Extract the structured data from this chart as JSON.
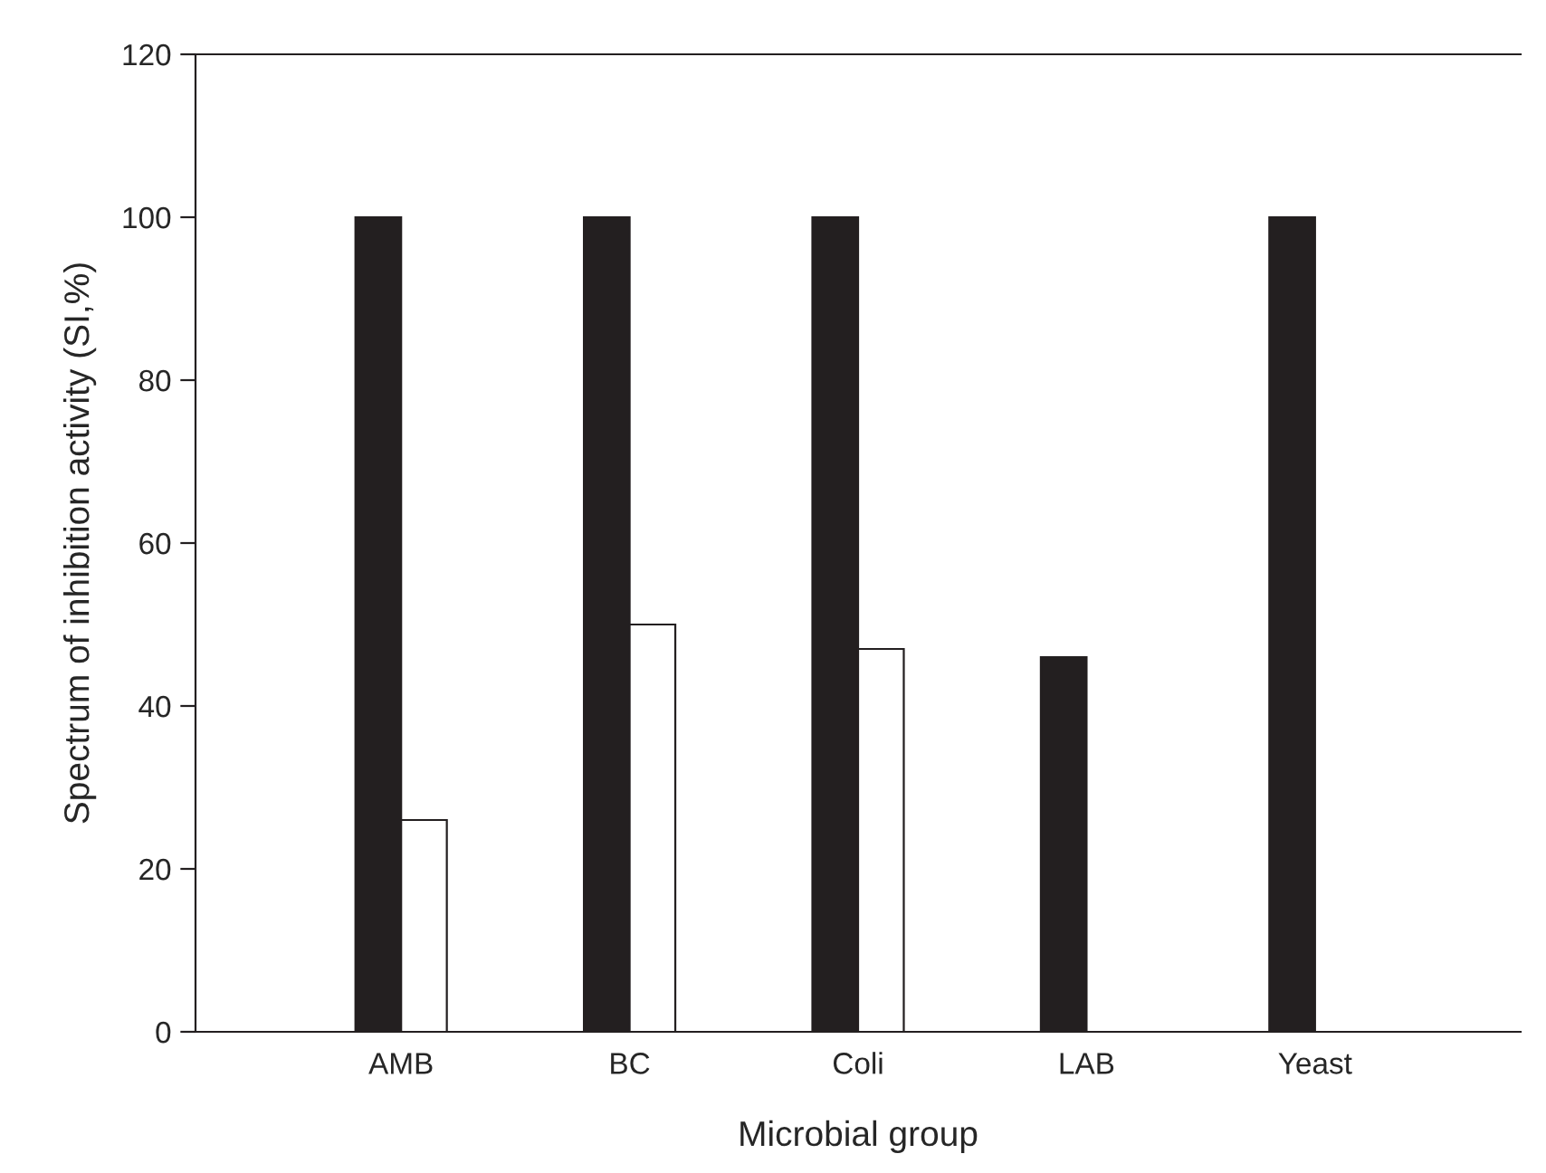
{
  "chart_data": {
    "type": "bar",
    "xlabel": "Microbial group",
    "ylabel": "Spectrum of inhibition activity (SI,%)",
    "categories": [
      "AMB",
      "BC",
      "Coli",
      "LAB",
      "Yeast"
    ],
    "series": [
      {
        "color": "#231f20",
        "values": [
          100,
          100,
          100,
          46,
          100
        ]
      },
      {
        "color": "#ffffff",
        "values": [
          26,
          50,
          47,
          null,
          null
        ]
      }
    ],
    "ylim": [
      0,
      120
    ],
    "yticks": [
      0,
      20,
      40,
      60,
      80,
      100,
      120
    ],
    "grid": false,
    "legend": false
  }
}
